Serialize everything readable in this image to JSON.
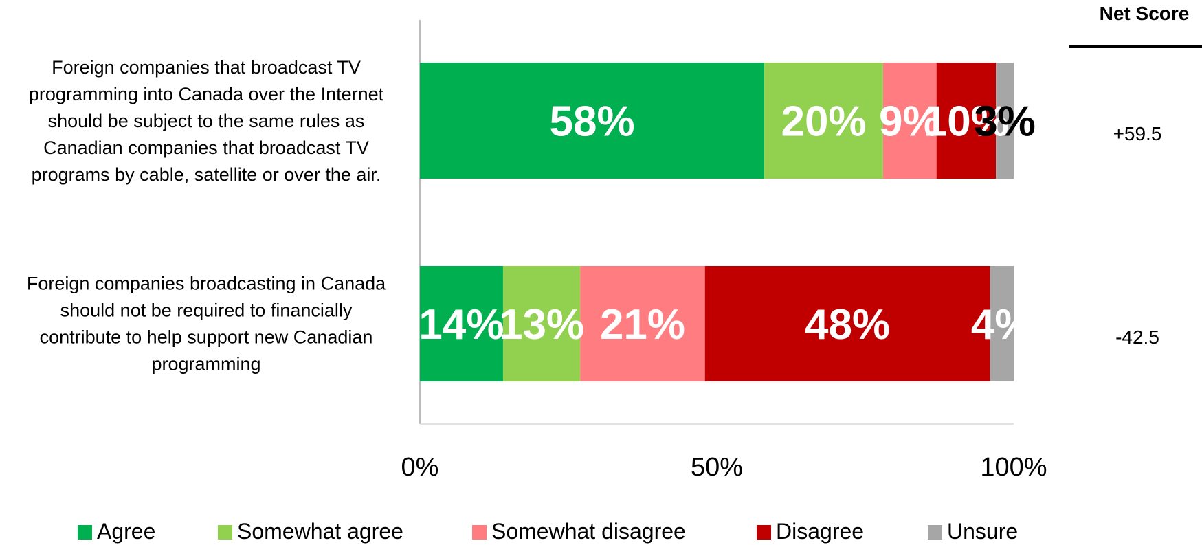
{
  "net_header": "Net Score",
  "chart_data": {
    "type": "bar",
    "orientation": "horizontal",
    "stacked": true,
    "percent_stacked": true,
    "categories": [
      "Foreign companies that broadcast TV programming into Canada over the Internet should be subject to the same rules as Canadian companies that broadcast TV programs by cable, satellite or over the air.",
      "Foreign companies broadcasting in Canada should not be required to financially contribute to help support new Canadian programming"
    ],
    "category_lines": [
      [
        "Foreign companies that broadcast TV",
        "programming into Canada over the Internet",
        "should be subject to the same rules as",
        "Canadian companies that broadcast TV",
        "programs by cable, satellite or over the air."
      ],
      [
        "Foreign companies broadcasting in Canada",
        "should not be required to financially",
        "contribute to help support new Canadian",
        "programming"
      ]
    ],
    "series": [
      {
        "name": "Agree",
        "color": "#00b050",
        "values": [
          58,
          14
        ],
        "labels": [
          "58%",
          "14%"
        ],
        "label_color": "#ffffff"
      },
      {
        "name": "Somewhat agree",
        "color": "#92d050",
        "values": [
          20,
          13
        ],
        "labels": [
          "20%",
          "13%"
        ],
        "label_color": "#ffffff"
      },
      {
        "name": "Somewhat disagree",
        "color": "#ff7c80",
        "values": [
          9,
          21
        ],
        "labels": [
          "9%",
          "21%"
        ],
        "label_color": "#ffffff"
      },
      {
        "name": "Disagree",
        "color": "#c00000",
        "values": [
          10,
          48
        ],
        "labels": [
          "10%",
          "48%"
        ],
        "label_color": "#ffffff"
      },
      {
        "name": "Unsure",
        "color": "#a6a6a6",
        "values": [
          3,
          4
        ],
        "labels": [
          "3%",
          "4%"
        ],
        "label_color": [
          "#000000",
          "#ffffff"
        ]
      }
    ],
    "net_scores": [
      "+59.5",
      "-42.5"
    ],
    "xlim": [
      0,
      100
    ],
    "x_ticks": [
      0,
      50,
      100
    ],
    "x_tick_labels": [
      "0%",
      "50%",
      "100%"
    ],
    "grid": false,
    "legend_position": "bottom"
  }
}
